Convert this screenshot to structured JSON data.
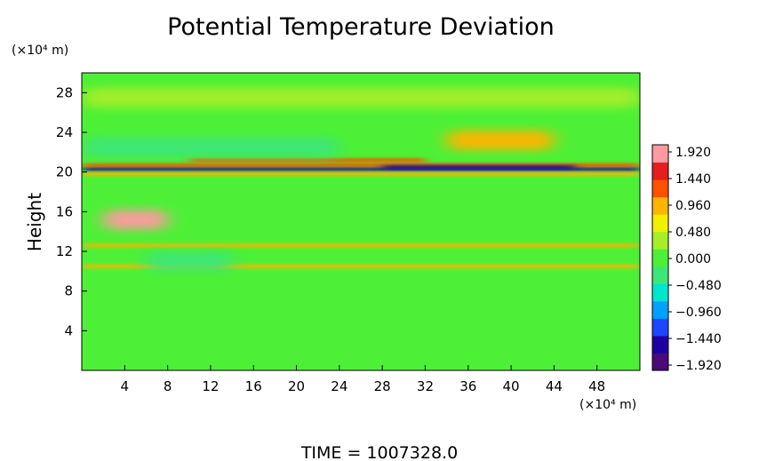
{
  "chart_data": {
    "type": "heatmap",
    "title": "Potential Temperature Deviation",
    "ylabel": "Height",
    "xlabel": "",
    "x_unit": "(×10⁴ m)",
    "y_unit": "(×10⁴ m)",
    "xlim": [
      0,
      52
    ],
    "ylim": [
      0,
      30
    ],
    "x_ticks": [
      4,
      8,
      12,
      16,
      20,
      24,
      28,
      32,
      36,
      40,
      44,
      48
    ],
    "x_tick_labels": [
      "4",
      "8",
      "12",
      "16",
      "20",
      "24",
      "28",
      "32",
      "36",
      "40",
      "44",
      "48"
    ],
    "y_ticks": [
      4,
      8,
      12,
      16,
      20,
      24,
      28
    ],
    "y_tick_labels": [
      "4",
      "8",
      "12",
      "16",
      "20",
      "24",
      "28"
    ],
    "colorbar": {
      "range": [
        -1.92,
        1.92
      ],
      "ticks": [
        1.92,
        1.44,
        0.96,
        0.48,
        0.0,
        -0.48,
        -0.96,
        -1.44,
        -1.92
      ],
      "tick_labels": [
        "1.920",
        "1.440",
        "0.960",
        "0.480",
        "0.000",
        "−0.480",
        "−0.960",
        "−1.440",
        "−1.920"
      ],
      "colors": [
        "#4b0a7a",
        "#1e00a0",
        "#1e46ff",
        "#00a0ff",
        "#00e6cc",
        "#3ce678",
        "#4df036",
        "#a6ee2a",
        "#f0f000",
        "#ffb400",
        "#ff5000",
        "#e61e1e",
        "#ff9aa0"
      ]
    },
    "background_value": 0.1,
    "features": [
      {
        "x": [
          0,
          52
        ],
        "y": 20.3,
        "value": -1.5,
        "note": "band"
      },
      {
        "x": [
          0,
          52
        ],
        "y": 20.7,
        "value": 1.2,
        "note": "band"
      },
      {
        "x": [
          0,
          52
        ],
        "y": 19.8,
        "value": 0.9,
        "note": "band"
      },
      {
        "x": [
          10,
          32
        ],
        "y": 21.2,
        "value": 1.3,
        "note": "band"
      },
      {
        "x": [
          28,
          46
        ],
        "y": 20.5,
        "value": -1.6,
        "note": "band"
      },
      {
        "x": [
          34,
          44
        ],
        "y": 23.2,
        "value": 1.0,
        "note": "patch"
      },
      {
        "x": [
          0,
          24
        ],
        "y": 22.5,
        "value": -0.3,
        "note": "patch"
      },
      {
        "x": [
          2,
          8
        ],
        "y": 15.2,
        "value": 1.8,
        "note": "patch"
      },
      {
        "x": [
          0,
          52
        ],
        "y": 12.6,
        "value": 0.9,
        "note": "band"
      },
      {
        "x": [
          0,
          52
        ],
        "y": 10.5,
        "value": 0.9,
        "note": "band"
      },
      {
        "x": [
          6,
          14
        ],
        "y": 11.0,
        "value": -0.35,
        "note": "patch"
      },
      {
        "x": [
          0,
          52
        ],
        "y": 27.5,
        "value": 0.25,
        "note": "patch"
      }
    ]
  },
  "footer": {
    "time_label": "TIME  =  1007328.0"
  }
}
